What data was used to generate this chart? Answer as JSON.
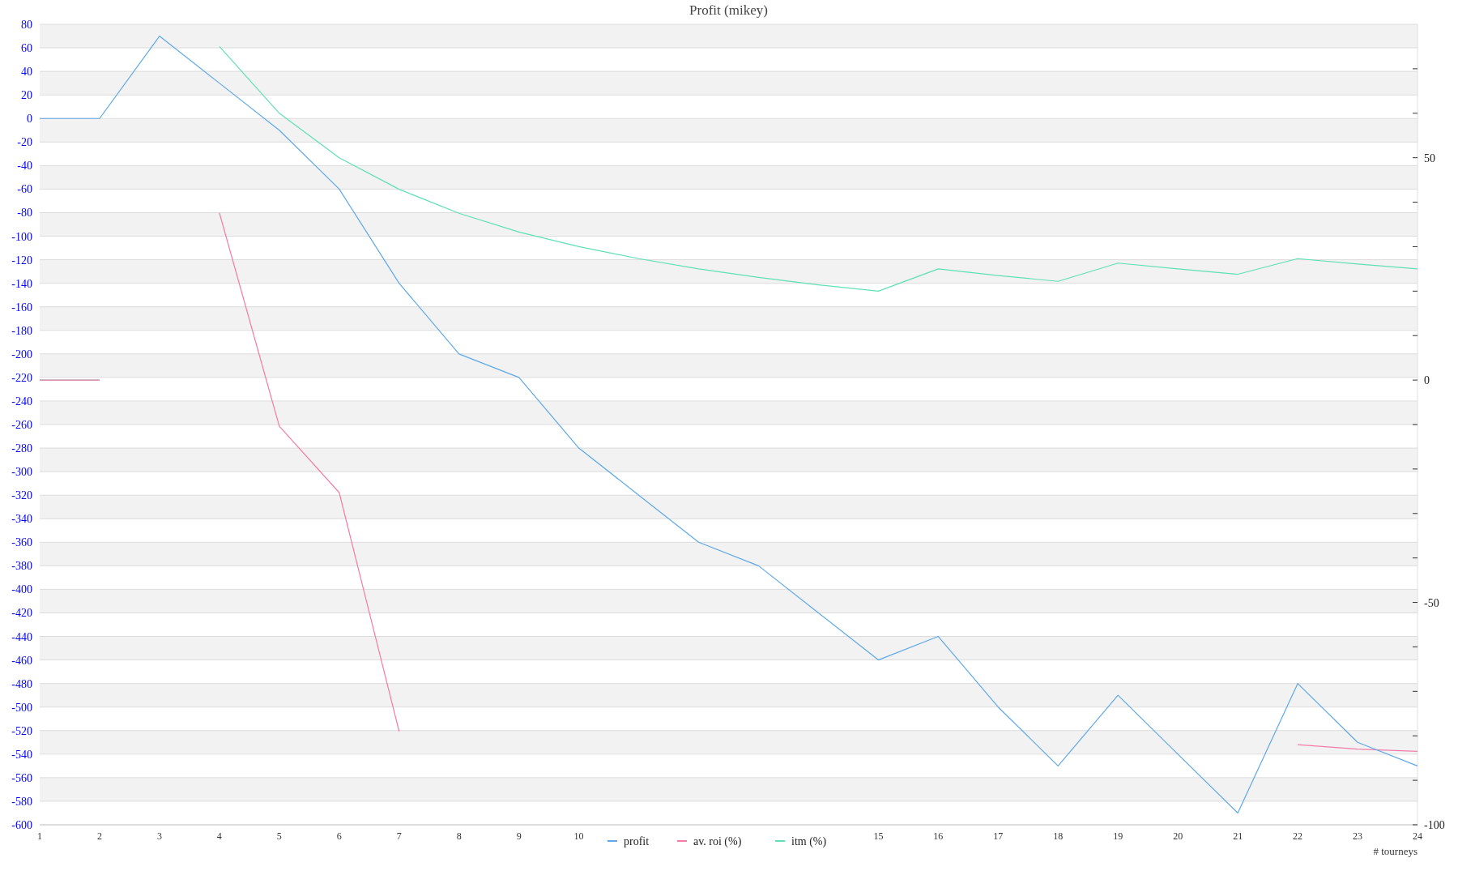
{
  "chart_data": {
    "type": "line",
    "title": "Profit  (mikey)",
    "xlabel": "# tourneys",
    "x": [
      1,
      2,
      3,
      4,
      5,
      6,
      7,
      8,
      9,
      10,
      11,
      12,
      13,
      14,
      15,
      16,
      17,
      18,
      19,
      20,
      21,
      22,
      23,
      24
    ],
    "xlim": [
      1,
      24
    ],
    "xticks": [
      1,
      2,
      3,
      4,
      5,
      6,
      7,
      8,
      9,
      10,
      15,
      16,
      17,
      18,
      19,
      20,
      21,
      22,
      23,
      24
    ],
    "ylim": [
      -600,
      80
    ],
    "yticks": [
      -600,
      -580,
      -560,
      -540,
      -520,
      -500,
      -480,
      -460,
      -440,
      -420,
      -400,
      -380,
      -360,
      -340,
      -320,
      -300,
      -280,
      -260,
      -240,
      -220,
      -200,
      -180,
      -160,
      -140,
      -120,
      -100,
      -80,
      -60,
      -40,
      -20,
      0,
      20,
      40,
      60,
      80
    ],
    "y2lim": [
      -100,
      80
    ],
    "y2ticks": [
      -100,
      {
        "value": -90,
        "label": null
      },
      {
        "value": -80,
        "label": null
      },
      {
        "value": -70,
        "label": null
      },
      {
        "value": -60,
        "label": null
      },
      -50,
      {
        "value": -40,
        "label": null
      },
      {
        "value": -30,
        "label": null
      },
      {
        "value": -20,
        "label": null
      },
      {
        "value": -10,
        "label": null
      },
      0,
      {
        "value": 10,
        "label": null
      },
      {
        "value": 20,
        "label": null
      },
      {
        "value": 30,
        "label": null
      },
      {
        "value": 40,
        "label": null
      },
      50,
      {
        "value": 60,
        "label": null
      },
      {
        "value": 70,
        "label": null
      }
    ],
    "grid": "y",
    "legend": "bottom",
    "marker": "none",
    "series": [
      {
        "name": "profit",
        "color": "#5fa8e8",
        "values": [
          0,
          0,
          70,
          30,
          -10,
          -60,
          -140,
          -200,
          -220,
          -280,
          -320,
          -360,
          -380,
          -420,
          -460,
          -440,
          -500,
          -550,
          -490,
          -540,
          -590,
          -480,
          -530,
          -550
        ]
      },
      {
        "name": "av. roi (%)",
        "color": "#f27ca8",
        "axis": "y2",
        "values": [
          0,
          0,
          null,
          37.6,
          -10.4,
          -25.3,
          -79,
          null,
          null,
          null,
          null,
          null,
          null,
          null,
          null,
          null,
          null,
          null,
          null,
          null,
          null,
          -82,
          -83,
          -83.5
        ]
      },
      {
        "name": "itm (%)",
        "color": "#5fe0b4",
        "axis": "y2",
        "values": [
          0,
          0,
          null,
          75,
          60,
          50,
          42.9,
          37.5,
          33.3,
          30,
          27.3,
          25,
          23.1,
          21.4,
          20,
          25,
          23.5,
          22.2,
          26.3,
          25,
          23.8,
          27.3,
          26.1,
          25
        ]
      }
    ]
  }
}
